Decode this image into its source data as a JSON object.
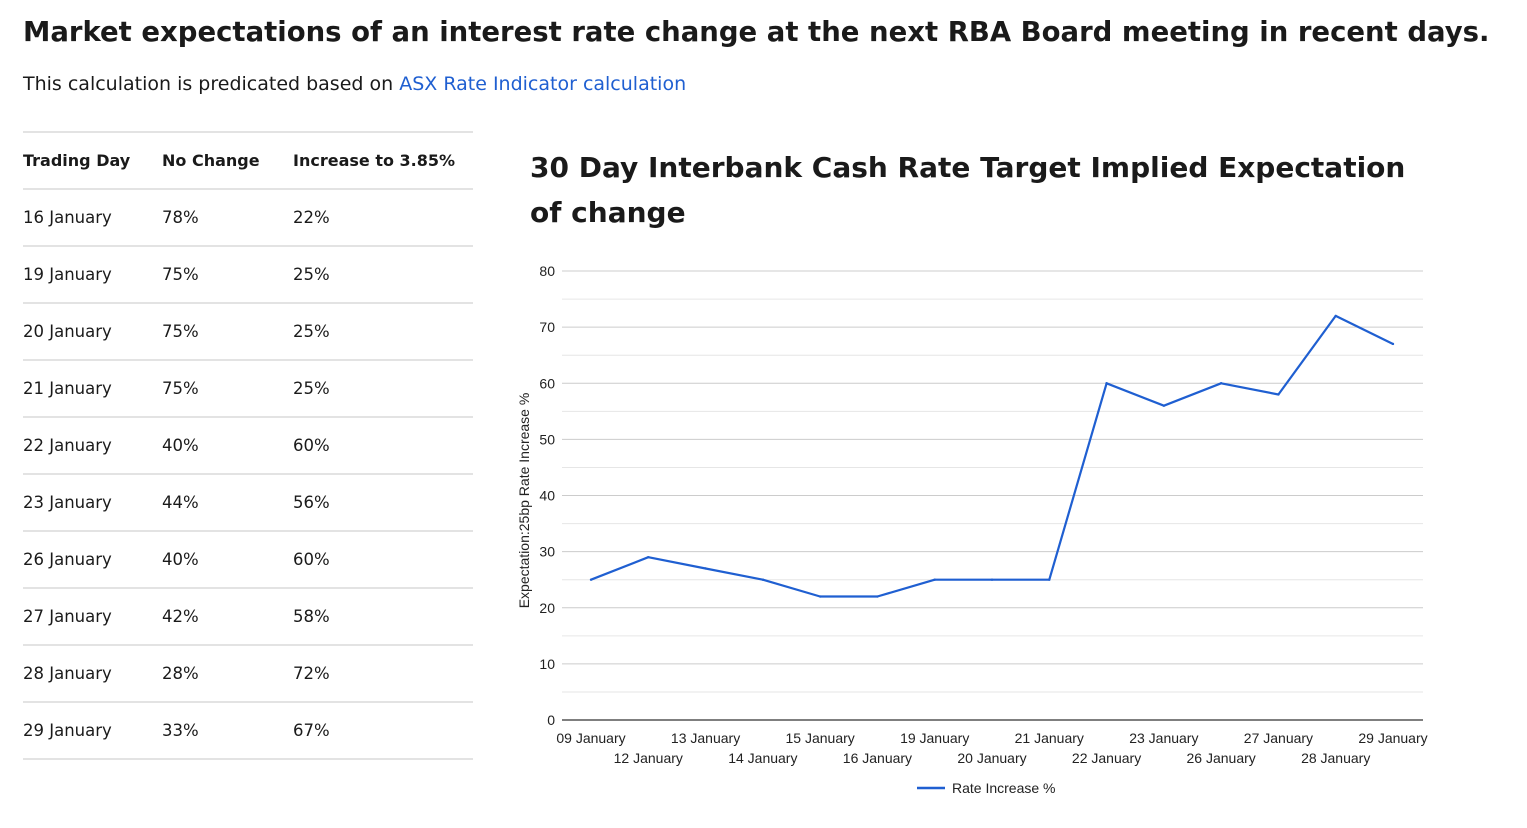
{
  "heading": "Market expectations of an interest rate change at the next RBA Board meeting in recent days.",
  "intro": {
    "text": "This calculation is predicated based on ",
    "link_text": "ASX Rate Indicator calculation"
  },
  "table": {
    "headers": [
      "Trading Day",
      "No Change",
      "Increase to 3.85%"
    ],
    "rows": [
      [
        "16 January",
        "78%",
        "22%"
      ],
      [
        "19 January",
        "75%",
        "25%"
      ],
      [
        "20 January",
        "75%",
        "25%"
      ],
      [
        "21 January",
        "75%",
        "25%"
      ],
      [
        "22 January",
        "40%",
        "60%"
      ],
      [
        "23 January",
        "44%",
        "56%"
      ],
      [
        "26 January",
        "40%",
        "60%"
      ],
      [
        "27 January",
        "42%",
        "58%"
      ],
      [
        "28 January",
        "28%",
        "72%"
      ],
      [
        "29 January",
        "33%",
        "67%"
      ]
    ]
  },
  "chart_data": {
    "type": "line",
    "title": "30 Day Interbank Cash Rate Target Implied Expectation of change",
    "ylabel": "Expectation:25bp Rate Increase %",
    "xlabel": "",
    "categories": [
      "09 January",
      "12 January",
      "13 January",
      "14 January",
      "15 January",
      "16 January",
      "19 January",
      "20 January",
      "21 January",
      "22 January",
      "23 January",
      "26 January",
      "27 January",
      "28 January",
      "29 January"
    ],
    "series": [
      {
        "name": "Rate Increase %",
        "values": [
          25,
          29,
          27,
          25,
          22,
          22,
          25,
          25,
          25,
          60,
          56,
          60,
          58,
          72,
          67
        ]
      }
    ],
    "ylim": [
      0,
      80
    ],
    "yticks": [
      0,
      10,
      20,
      30,
      40,
      50,
      60,
      70,
      80
    ],
    "grid": true,
    "legend": "bottom",
    "colors": {
      "line": "#1f5fd1",
      "grid": "#cccccc",
      "minor_grid": "#e6e6e6",
      "axis": "#333333"
    }
  },
  "colors": {
    "link": "#1f5fd1",
    "rule": "#e3e3e3"
  }
}
